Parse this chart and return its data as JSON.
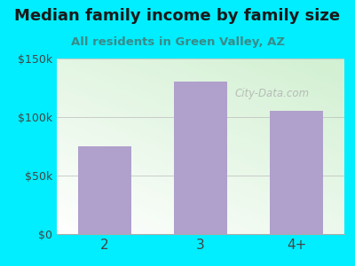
{
  "title": "Median family income by family size",
  "subtitle": "All residents in Green Valley, AZ",
  "categories": [
    "2",
    "3",
    "4+"
  ],
  "values": [
    75000,
    130000,
    105000
  ],
  "bar_color": "#b0a0cc",
  "bg_color": "#00eeff",
  "plot_bg_topleft": "#d6eed6",
  "plot_bg_topright": "#e8f5e8",
  "plot_bg_bottomleft": "#ffffff",
  "plot_bg_bottomright": "#f0faf0",
  "title_color": "#1a1a1a",
  "subtitle_color": "#3a8a8a",
  "tick_color": "#444444",
  "ylim": [
    0,
    150000
  ],
  "yticks": [
    0,
    50000,
    100000,
    150000
  ],
  "ytick_labels": [
    "$0",
    "$50k",
    "$100k",
    "$150k"
  ],
  "watermark": "City-Data.com",
  "title_fontsize": 13,
  "subtitle_fontsize": 9.5,
  "tick_fontsize": 9,
  "xtick_fontsize": 11
}
